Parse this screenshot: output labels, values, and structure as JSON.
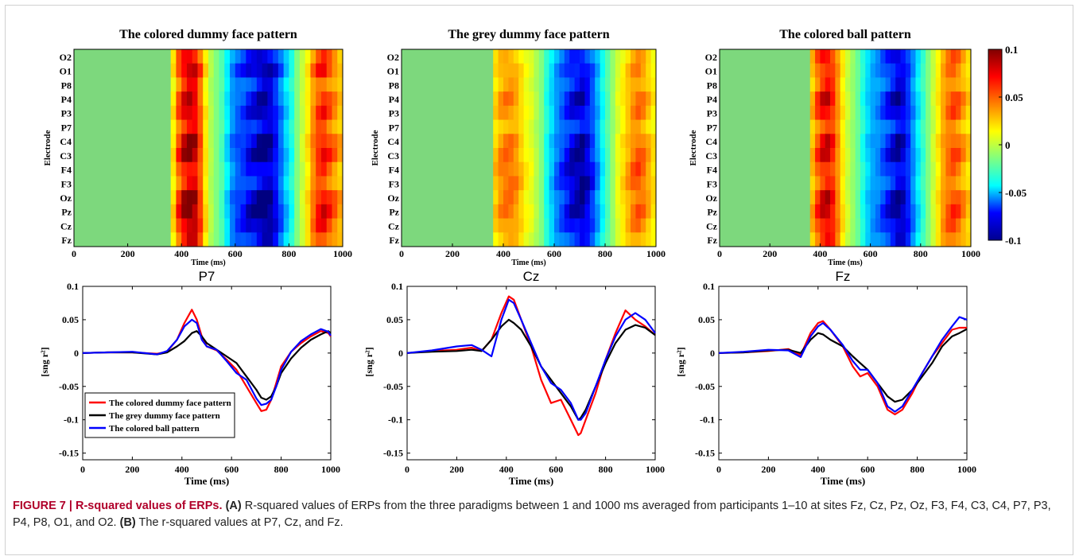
{
  "chart_data": [
    {
      "type": "heatmap",
      "title": "The colored dummy face pattern",
      "ylabel": "Electrode",
      "xlabel": "Time (ms)",
      "xticks": [
        "0",
        "200",
        "400",
        "600",
        "800",
        "1000"
      ],
      "xlim": [
        0,
        1000
      ],
      "rows": [
        "O2",
        "O1",
        "P8",
        "P4",
        "P3",
        "P7",
        "C4",
        "C3",
        "F4",
        "F3",
        "Oz",
        "Pz",
        "Cz",
        "Fz"
      ],
      "time_bins_ms": [
        0,
        360,
        380,
        400,
        420,
        440,
        460,
        480,
        500,
        520,
        540,
        560,
        580,
        600,
        620,
        640,
        660,
        680,
        700,
        720,
        740,
        760,
        780,
        800,
        820,
        840,
        860,
        880,
        900,
        920,
        940,
        960,
        980
      ],
      "profile": [
        0,
        0.03,
        0.06,
        0.08,
        0.09,
        0.085,
        0.06,
        0.03,
        0.01,
        0.0,
        -0.01,
        -0.03,
        -0.05,
        -0.06,
        -0.065,
        -0.075,
        -0.08,
        -0.09,
        -0.095,
        -0.09,
        -0.075,
        -0.055,
        -0.035,
        -0.02,
        0.0,
        0.015,
        0.03,
        0.05,
        0.065,
        0.07,
        0.06,
        0.05,
        0.04
      ],
      "row_gain": [
        0.9,
        1.05,
        0.8,
        0.95,
        1.0,
        0.85,
        1.05,
        1.1,
        0.9,
        0.85,
        1.1,
        1.15,
        1.05,
        0.9
      ]
    },
    {
      "type": "heatmap",
      "title": "The grey dummy face pattern",
      "ylabel": "Electrode",
      "xlabel": "Time (ms)",
      "xticks": [
        "0",
        "200",
        "400",
        "600",
        "800",
        "1000"
      ],
      "xlim": [
        0,
        1000
      ],
      "rows": [
        "O2",
        "O1",
        "P8",
        "P4",
        "P3",
        "P7",
        "C4",
        "C3",
        "F4",
        "F3",
        "Oz",
        "Pz",
        "Cz",
        "Fz"
      ],
      "time_bins_ms": [
        0,
        360,
        380,
        400,
        420,
        440,
        460,
        480,
        500,
        520,
        540,
        560,
        580,
        600,
        620,
        640,
        660,
        680,
        700,
        720,
        740,
        760,
        780,
        800,
        820,
        840,
        860,
        880,
        900,
        920,
        940,
        960,
        980
      ],
      "profile": [
        0,
        0.035,
        0.045,
        0.05,
        0.05,
        0.045,
        0.035,
        0.025,
        0.02,
        0.01,
        0.0,
        -0.02,
        -0.035,
        -0.05,
        -0.06,
        -0.07,
        -0.08,
        -0.085,
        -0.09,
        -0.08,
        -0.065,
        -0.045,
        -0.025,
        -0.01,
        0.005,
        0.02,
        0.03,
        0.04,
        0.05,
        0.055,
        0.05,
        0.04,
        0.03
      ],
      "row_gain": [
        0.8,
        0.9,
        0.85,
        1.0,
        0.95,
        0.8,
        1.0,
        1.05,
        1.1,
        1.1,
        1.0,
        1.05,
        0.95,
        0.8
      ]
    },
    {
      "type": "heatmap",
      "title": "The colored ball pattern",
      "ylabel": "Electrode",
      "xlabel": "Time (ms)",
      "xticks": [
        "0",
        "200",
        "400",
        "600",
        "800",
        "1000"
      ],
      "xlim": [
        0,
        1000
      ],
      "rows": [
        "O2",
        "O1",
        "P8",
        "P4",
        "P3",
        "P7",
        "C4",
        "C3",
        "F4",
        "F3",
        "Oz",
        "Pz",
        "Cz",
        "Fz"
      ],
      "time_bins_ms": [
        0,
        360,
        380,
        400,
        420,
        440,
        460,
        480,
        500,
        520,
        540,
        560,
        580,
        600,
        620,
        640,
        660,
        680,
        700,
        720,
        740,
        760,
        780,
        800,
        820,
        840,
        860,
        880,
        900,
        920,
        940,
        960,
        980
      ],
      "profile": [
        0,
        0.04,
        0.06,
        0.075,
        0.08,
        0.07,
        0.05,
        0.03,
        0.015,
        0.005,
        -0.005,
        -0.02,
        -0.035,
        -0.045,
        -0.05,
        -0.06,
        -0.07,
        -0.08,
        -0.09,
        -0.085,
        -0.07,
        -0.05,
        -0.03,
        -0.015,
        0.0,
        0.015,
        0.03,
        0.045,
        0.055,
        0.06,
        0.055,
        0.045,
        0.035
      ],
      "row_gain": [
        0.95,
        0.9,
        0.85,
        1.05,
        1.0,
        0.8,
        1.0,
        1.05,
        0.9,
        0.85,
        1.05,
        1.1,
        1.0,
        0.9
      ]
    },
    {
      "type": "colorbar",
      "ylim": [
        -0.1,
        0.1
      ],
      "ticks": [
        "0.1",
        "0.05",
        "0",
        "-0.05",
        "-0.1"
      ],
      "tick_values": [
        0.1,
        0.05,
        0,
        -0.05,
        -0.1
      ],
      "colors": [
        "#00008f",
        "#0000ff",
        "#00ffff",
        "#80ff80",
        "#ffff00",
        "#ff8000",
        "#ff0000",
        "#800000"
      ]
    },
    {
      "type": "line",
      "title": "P7",
      "xlabel": "Time (ms)",
      "ylabel": "[sng r²]",
      "xlim": [
        0,
        1000
      ],
      "ylim": [
        -0.16,
        0.1
      ],
      "xticks": [
        "0",
        "200",
        "400",
        "600",
        "800",
        "1000"
      ],
      "yticks": [
        "0.1",
        "0.05",
        "0",
        "-0.05",
        "-0.1",
        "-0.15"
      ],
      "ytick_values": [
        0.1,
        0.05,
        0,
        -0.05,
        -0.1,
        -0.15
      ],
      "x": [
        0,
        100,
        200,
        300,
        340,
        380,
        410,
        440,
        460,
        480,
        500,
        540,
        580,
        620,
        660,
        700,
        720,
        740,
        760,
        780,
        800,
        840,
        880,
        920,
        960,
        990,
        1000
      ],
      "series": [
        {
          "name": "The colored dummy face pattern",
          "color": "#ff0000",
          "values": [
            0,
            0.001,
            0.001,
            -0.001,
            0.002,
            0.02,
            0.045,
            0.065,
            0.05,
            0.025,
            0.01,
            0.004,
            -0.01,
            -0.025,
            -0.05,
            -0.075,
            -0.087,
            -0.085,
            -0.07,
            -0.045,
            -0.02,
            0.002,
            0.015,
            0.025,
            0.033,
            0.03,
            0.025
          ]
        },
        {
          "name": "The grey dummy face pattern",
          "color": "#000000",
          "values": [
            0,
            0.001,
            0.001,
            -0.002,
            0.001,
            0.01,
            0.018,
            0.03,
            0.033,
            0.025,
            0.015,
            0.005,
            -0.005,
            -0.015,
            -0.035,
            -0.055,
            -0.067,
            -0.07,
            -0.065,
            -0.05,
            -0.03,
            -0.008,
            0.008,
            0.02,
            0.028,
            0.033,
            0.03
          ]
        },
        {
          "name": "The colored ball pattern",
          "color": "#0000ff",
          "values": [
            0,
            0.001,
            0.002,
            -0.002,
            0.003,
            0.02,
            0.04,
            0.05,
            0.045,
            0.02,
            0.01,
            0.005,
            -0.012,
            -0.03,
            -0.04,
            -0.068,
            -0.078,
            -0.076,
            -0.07,
            -0.05,
            -0.025,
            0.002,
            0.018,
            0.028,
            0.036,
            0.032,
            0.026
          ]
        }
      ],
      "legend": "bottom-left"
    },
    {
      "type": "line",
      "title": "Cz",
      "xlabel": "Time (ms)",
      "ylabel": "[sng r²]",
      "xlim": [
        0,
        1000
      ],
      "ylim": [
        -0.16,
        0.1
      ],
      "xticks": [
        "0",
        "200",
        "400",
        "600",
        "800",
        "1000"
      ],
      "yticks": [
        "0.1",
        "0.05",
        "0",
        "-0.05",
        "-0.1",
        "-0.15"
      ],
      "ytick_values": [
        0.1,
        0.05,
        0,
        -0.05,
        -0.1,
        -0.15
      ],
      "x": [
        0,
        100,
        200,
        260,
        300,
        340,
        380,
        410,
        430,
        460,
        500,
        540,
        580,
        620,
        660,
        690,
        700,
        720,
        760,
        800,
        840,
        880,
        920,
        960,
        1000
      ],
      "series": [
        {
          "name": "The colored dummy face pattern",
          "color": "#ff0000",
          "values": [
            0,
            0.003,
            0.005,
            0.008,
            0.003,
            0.02,
            0.06,
            0.085,
            0.08,
            0.05,
            0.01,
            -0.04,
            -0.075,
            -0.07,
            -0.1,
            -0.123,
            -0.12,
            -0.1,
            -0.06,
            -0.01,
            0.03,
            0.064,
            0.05,
            0.04,
            0.027
          ]
        },
        {
          "name": "The grey dummy face pattern",
          "color": "#000000",
          "values": [
            0,
            0.002,
            0.003,
            0.005,
            0.003,
            0.02,
            0.04,
            0.05,
            0.045,
            0.035,
            0.01,
            -0.02,
            -0.04,
            -0.06,
            -0.08,
            -0.1,
            -0.097,
            -0.085,
            -0.05,
            -0.015,
            0.015,
            0.035,
            0.042,
            0.038,
            0.027
          ]
        },
        {
          "name": "The colored ball pattern",
          "color": "#0000ff",
          "values": [
            0,
            0.004,
            0.01,
            0.012,
            0.005,
            -0.005,
            0.05,
            0.08,
            0.075,
            0.05,
            0.015,
            -0.02,
            -0.045,
            -0.055,
            -0.075,
            -0.1,
            -0.1,
            -0.09,
            -0.05,
            -0.01,
            0.025,
            0.05,
            0.06,
            0.05,
            0.03
          ]
        }
      ]
    },
    {
      "type": "line",
      "title": "Fz",
      "xlabel": "Time (ms)",
      "ylabel": "[sng r²]",
      "xlim": [
        0,
        1000
      ],
      "ylim": [
        -0.16,
        0.1
      ],
      "xticks": [
        "0",
        "200",
        "400",
        "600",
        "800",
        "1000"
      ],
      "yticks": [
        "0.1",
        "0.05",
        "0",
        "-0.05",
        "-0.1",
        "-0.15"
      ],
      "ytick_values": [
        0.1,
        0.05,
        0,
        -0.05,
        -0.1,
        -0.15
      ],
      "x": [
        0,
        100,
        200,
        280,
        330,
        370,
        400,
        420,
        450,
        500,
        540,
        570,
        600,
        640,
        680,
        710,
        740,
        780,
        820,
        860,
        900,
        940,
        970,
        1000
      ],
      "series": [
        {
          "name": "The colored dummy face pattern",
          "color": "#ff0000",
          "values": [
            0,
            0.001,
            0.003,
            0.006,
            -0.003,
            0.03,
            0.045,
            0.048,
            0.035,
            0.01,
            -0.02,
            -0.035,
            -0.03,
            -0.05,
            -0.085,
            -0.092,
            -0.085,
            -0.06,
            -0.03,
            -0.005,
            0.015,
            0.035,
            0.038,
            0.038
          ]
        },
        {
          "name": "The grey dummy face pattern",
          "color": "#000000",
          "values": [
            0,
            0.001,
            0.004,
            0.005,
            0.0,
            0.02,
            0.03,
            0.028,
            0.02,
            0.01,
            -0.005,
            -0.015,
            -0.025,
            -0.045,
            -0.065,
            -0.073,
            -0.07,
            -0.055,
            -0.035,
            -0.015,
            0.01,
            0.025,
            0.03,
            0.036
          ]
        },
        {
          "name": "The colored ball pattern",
          "color": "#0000ff",
          "values": [
            0,
            0.002,
            0.005,
            0.004,
            -0.006,
            0.025,
            0.04,
            0.045,
            0.035,
            0.012,
            -0.012,
            -0.025,
            -0.025,
            -0.045,
            -0.08,
            -0.088,
            -0.08,
            -0.055,
            -0.03,
            -0.005,
            0.02,
            0.04,
            0.054,
            0.05
          ]
        }
      ]
    }
  ],
  "caption": {
    "figure_label": "FIGURE 7 |",
    "title": "R-squared values of ERPs.",
    "part_a_label": "(A)",
    "part_a_text": "R-squared values of ERPs from the three paradigms between 1 and 1000 ms averaged from participants 1–10 at sites Fz, Cz, Pz, Oz, F3, F4, C3, C4, P7, P3, P4, P8, O1, and O2.",
    "part_b_label": "(B)",
    "part_b_text": "The r-squared values at P7, Cz, and Fz."
  }
}
